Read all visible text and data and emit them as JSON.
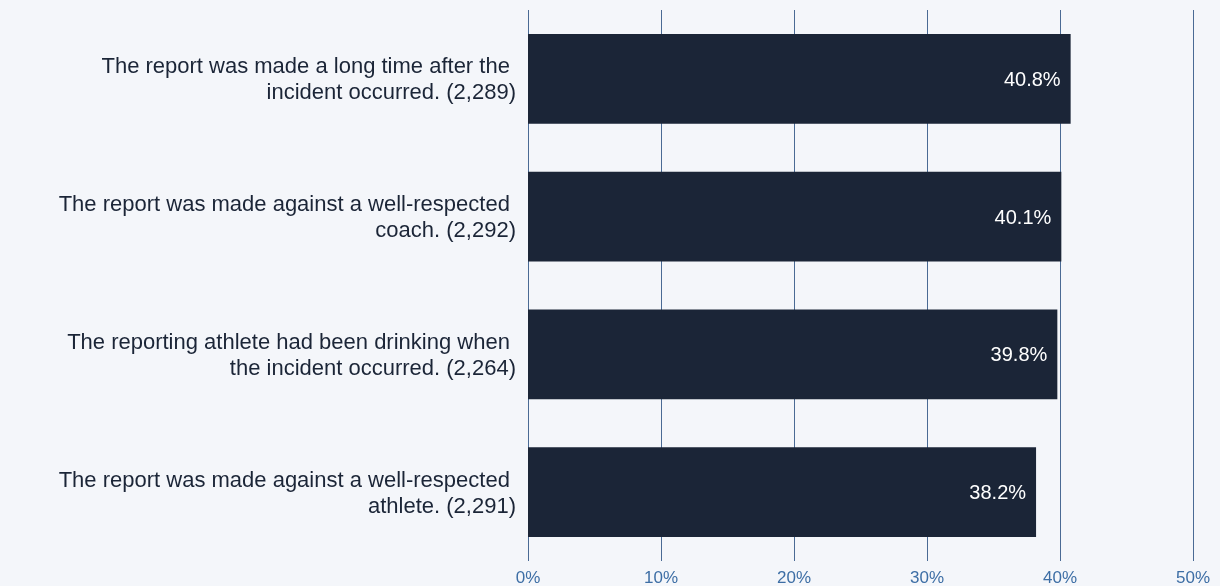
{
  "chart_data": {
    "type": "bar",
    "orientation": "horizontal",
    "categories": [
      "The report was made a long time after the incident occurred. (2,289)",
      "The report was made against a well-respected coach. (2,292)",
      "The reporting athlete had been drinking when the incident occurred. (2,264)",
      "The report was made against a well-respected athlete. (2,291)"
    ],
    "values": [
      40.8,
      40.1,
      39.8,
      38.2
    ],
    "value_labels": [
      "40.8%",
      "40.1%",
      "39.8%",
      "38.2%"
    ],
    "color": "#1b2537",
    "xlim": [
      0,
      50
    ],
    "xticks": [
      {
        "value": 0,
        "label": "0%"
      },
      {
        "value": 10,
        "label": "10%"
      },
      {
        "value": 20,
        "label": "20%"
      },
      {
        "value": 30,
        "label": "30%"
      },
      {
        "value": 40,
        "label": "40%"
      },
      {
        "value": 50,
        "label": "50%"
      }
    ],
    "grid": "x"
  }
}
